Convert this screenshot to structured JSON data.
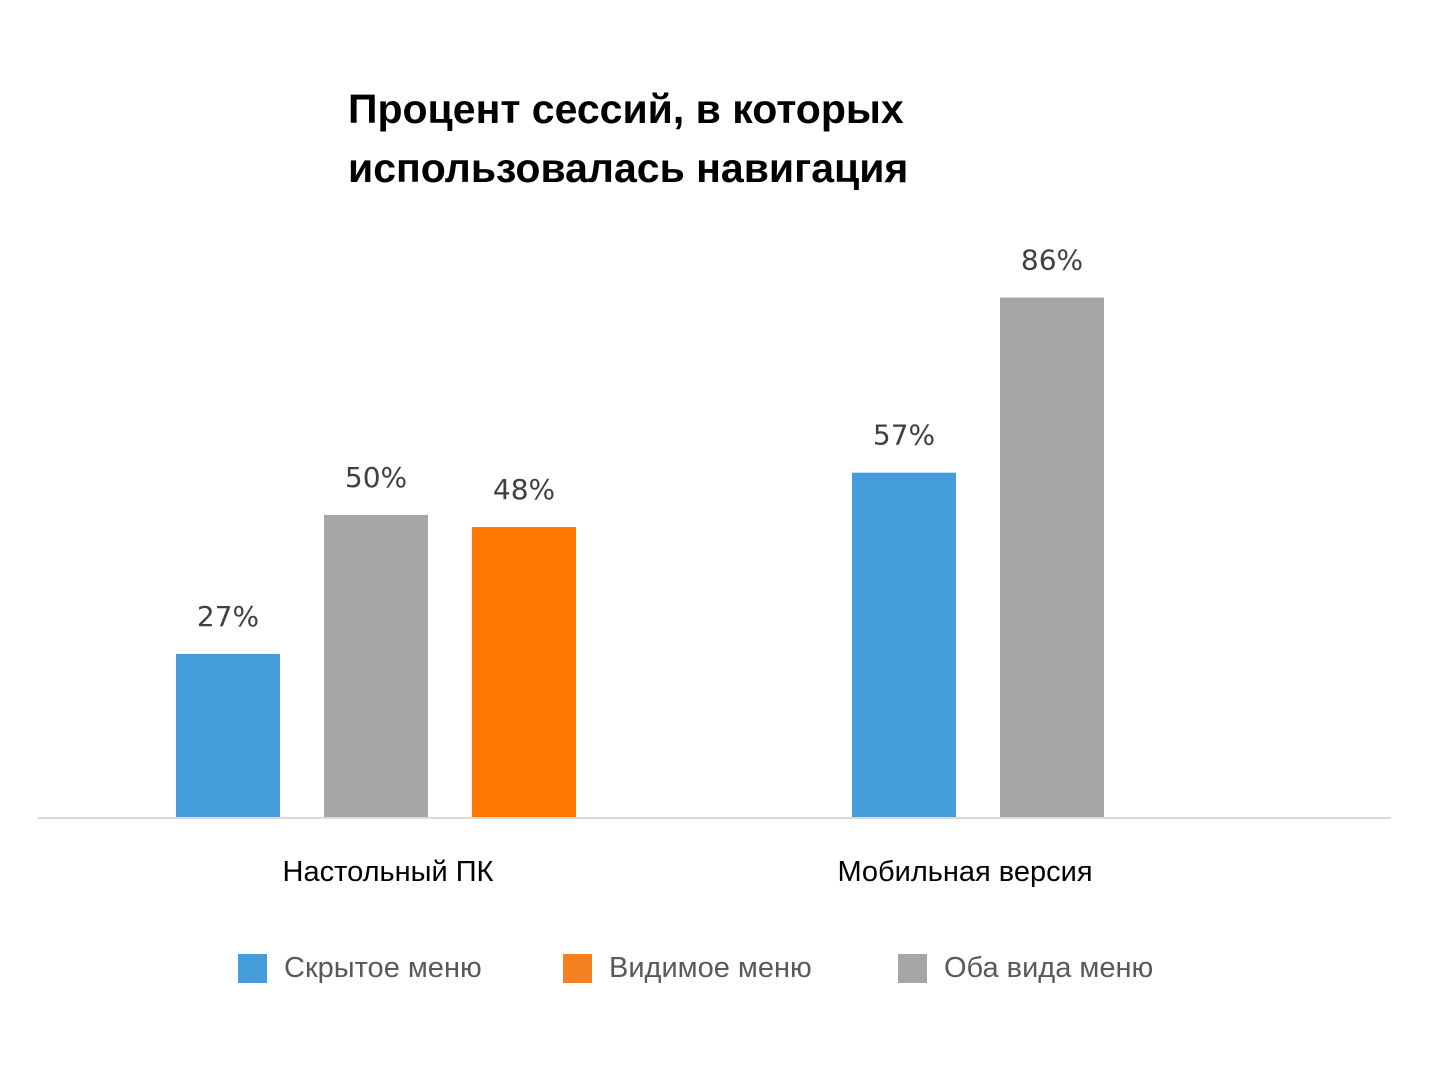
{
  "chart_data": {
    "type": "bar",
    "title_lines": [
      "Процент сессий, в которых",
      "использовалась навигация"
    ],
    "categories": [
      "Настольный ПК",
      "Мобильная версия"
    ],
    "unit": "%",
    "ylim": [
      0,
      100
    ],
    "grid": false,
    "legend_position": "bottom",
    "bars": [
      {
        "category": 0,
        "series": 0,
        "value": 27,
        "label": "27%"
      },
      {
        "category": 0,
        "series": 2,
        "value": 50,
        "label": "50%"
      },
      {
        "category": 0,
        "series": 1,
        "value": 48,
        "label": "48%"
      },
      {
        "category": 1,
        "series": 0,
        "value": 57,
        "label": "57%"
      },
      {
        "category": 1,
        "series": 2,
        "value": 86,
        "label": "86%"
      }
    ],
    "series": [
      {
        "name": "Скрытое меню",
        "color": "#469ddb"
      },
      {
        "name": "Видимое меню",
        "color": "#ff7700"
      },
      {
        "name": "Оба вида меню",
        "color": "#a6a6a6"
      }
    ],
    "legend_colors": [
      "#469ddb",
      "#f58021",
      "#a6a6a6"
    ],
    "axis_color": "#d9d9d9"
  }
}
